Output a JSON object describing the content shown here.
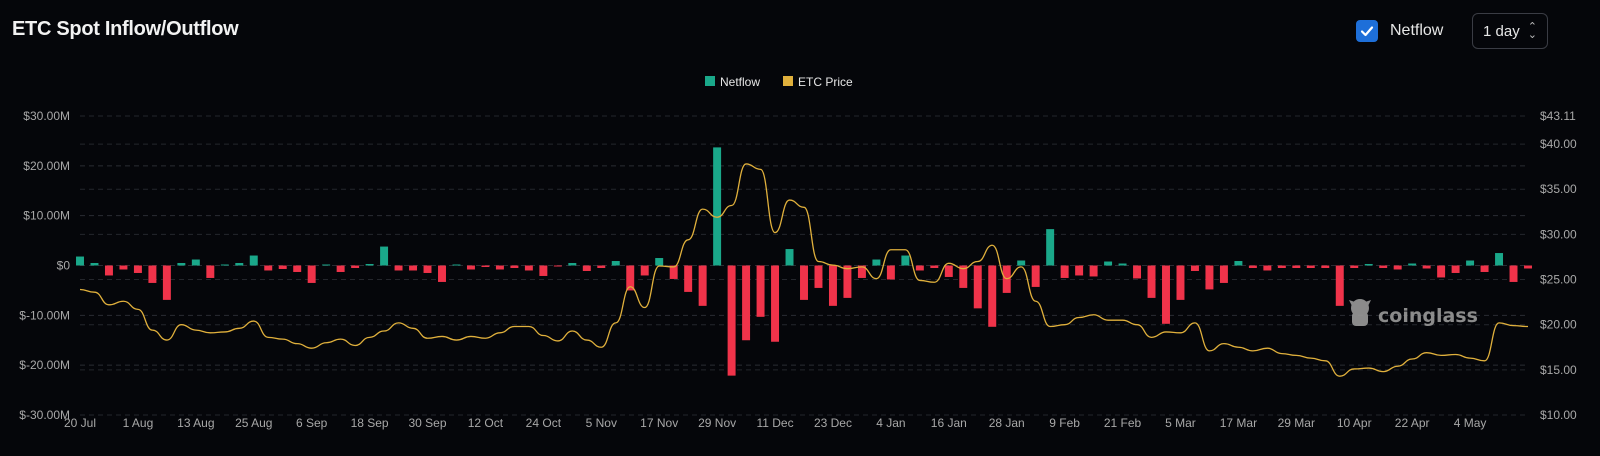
{
  "header": {
    "title": "ETC Spot Inflow/Outflow",
    "netflow_toggle": {
      "label": "Netflow",
      "checked": true,
      "icon": "checkmark-icon"
    },
    "interval_select": {
      "value": "1 day",
      "icon": "chevron-up-down-icon"
    }
  },
  "watermark": "coinglass",
  "colors": {
    "background": "#05060a",
    "inflow": "#1aa88a",
    "outflow": "#f0334a",
    "price": "#e0b03c",
    "checkbox": "#1e6fd9"
  },
  "chart_data": {
    "type": "bar+line",
    "title": "ETC Spot Inflow/Outflow",
    "legend": {
      "position": "top-center",
      "items": [
        "Netflow",
        "ETC Price"
      ]
    },
    "grid": true,
    "y_left": {
      "ticks": [
        "$30.00M",
        "$20.00M",
        "$10.00M",
        "$0",
        "$-10.00M",
        "$-20.00M",
        "$-30.00M"
      ],
      "range": [
        -30,
        30
      ],
      "unit": "M USD"
    },
    "y_right": {
      "ticks": [
        "$43.11",
        "$40.00",
        "$35.00",
        "$30.00",
        "$25.00",
        "$20.00",
        "$15.00",
        "$10.00"
      ],
      "range": [
        10,
        43.11
      ],
      "unit": "USD"
    },
    "x_ticks": [
      "20 Jul",
      "1 Aug",
      "13 Aug",
      "25 Aug",
      "6 Sep",
      "18 Sep",
      "30 Sep",
      "12 Oct",
      "24 Oct",
      "5 Nov",
      "17 Nov",
      "29 Nov",
      "11 Dec",
      "23 Dec",
      "4 Jan",
      "16 Jan",
      "28 Jan",
      "9 Feb",
      "21 Feb",
      "5 Mar",
      "17 Mar",
      "29 Mar",
      "10 Apr",
      "22 Apr",
      "4 May"
    ],
    "x": [
      "20 Jul",
      "23 Jul",
      "26 Jul",
      "29 Jul",
      "1 Aug",
      "4 Aug",
      "7 Aug",
      "10 Aug",
      "13 Aug",
      "16 Aug",
      "19 Aug",
      "22 Aug",
      "25 Aug",
      "28 Aug",
      "31 Aug",
      "3 Sep",
      "6 Sep",
      "9 Sep",
      "12 Sep",
      "15 Sep",
      "18 Sep",
      "21 Sep",
      "24 Sep",
      "27 Sep",
      "30 Sep",
      "3 Oct",
      "6 Oct",
      "9 Oct",
      "12 Oct",
      "15 Oct",
      "18 Oct",
      "21 Oct",
      "24 Oct",
      "27 Oct",
      "30 Oct",
      "2 Nov",
      "5 Nov",
      "8 Nov",
      "11 Nov",
      "14 Nov",
      "17 Nov",
      "20 Nov",
      "23 Nov",
      "26 Nov",
      "29 Nov",
      "2 Dec",
      "5 Dec",
      "8 Dec",
      "11 Dec",
      "14 Dec",
      "17 Dec",
      "20 Dec",
      "23 Dec",
      "26 Dec",
      "29 Dec",
      "1 Jan",
      "4 Jan",
      "7 Jan",
      "10 Jan",
      "13 Jan",
      "16 Jan",
      "19 Jan",
      "22 Jan",
      "25 Jan",
      "28 Jan",
      "31 Jan",
      "3 Feb",
      "6 Feb",
      "9 Feb",
      "12 Feb",
      "15 Feb",
      "18 Feb",
      "21 Feb",
      "24 Feb",
      "27 Feb",
      "2 Mar",
      "5 Mar",
      "8 Mar",
      "11 Mar",
      "14 Mar",
      "17 Mar",
      "20 Mar",
      "23 Mar",
      "26 Mar",
      "29 Mar",
      "1 Apr",
      "4 Apr",
      "7 Apr",
      "10 Apr",
      "13 Apr",
      "16 Apr",
      "19 Apr",
      "22 Apr",
      "25 Apr",
      "28 Apr",
      "1 May",
      "4 May",
      "7 May",
      "10 May",
      "13 May",
      "16 May"
    ],
    "series": [
      {
        "name": "Netflow",
        "type": "bar",
        "axis": "left",
        "unit": "M USD",
        "values": [
          1.8,
          0.5,
          -2.0,
          -0.8,
          -1.5,
          -3.5,
          -6.9,
          0.5,
          1.2,
          -2.5,
          0.2,
          0.5,
          2.0,
          -1.0,
          -0.7,
          -1.3,
          -3.5,
          0.2,
          -1.3,
          -0.5,
          0.3,
          3.8,
          -1.0,
          -1.0,
          -1.5,
          -3.3,
          0.2,
          -0.8,
          -0.3,
          -0.8,
          -0.5,
          -1.0,
          -2.1,
          -0.2,
          0.5,
          -1.1,
          -0.5,
          0.9,
          -5.0,
          -2.0,
          1.5,
          -2.7,
          -5.3,
          -8.1,
          23.7,
          -22.1,
          -15.0,
          -10.3,
          -15.3,
          3.3,
          -6.9,
          -4.5,
          -8.1,
          -6.5,
          -2.5,
          1.2,
          -2.8,
          2.0,
          -1.0,
          -0.5,
          -2.3,
          -4.5,
          -8.6,
          -12.3,
          -5.5,
          1.0,
          -4.3,
          7.3,
          -2.5,
          -2.0,
          -2.2,
          0.8,
          0.4,
          -2.6,
          -6.5,
          -11.7,
          -6.9,
          -1.1,
          -4.8,
          -3.5,
          0.9,
          -0.5,
          -1.0,
          -0.5,
          -0.5,
          -0.5,
          -0.5,
          -8.1,
          -0.5,
          0.3,
          -0.5,
          -0.8,
          0.4,
          -0.6,
          -2.4,
          -1.5,
          1.0,
          -1.3,
          2.5,
          -3.3,
          -0.6
        ]
      },
      {
        "name": "ETC Price",
        "type": "line",
        "axis": "right",
        "unit": "USD",
        "values": [
          23.9,
          23.6,
          22.2,
          22.6,
          21.7,
          19.4,
          18.3,
          20.0,
          19.4,
          19.1,
          19.2,
          19.6,
          20.4,
          18.6,
          18.4,
          17.9,
          17.4,
          18.0,
          18.4,
          17.7,
          18.6,
          19.3,
          20.2,
          19.6,
          18.5,
          18.7,
          18.3,
          18.7,
          18.5,
          19.1,
          19.8,
          19.8,
          18.8,
          18.2,
          19.3,
          18.3,
          17.5,
          20.2,
          24.2,
          21.9,
          26.5,
          26.4,
          29.4,
          32.8,
          31.9,
          33.2,
          37.8,
          37.2,
          30.2,
          33.8,
          33.0,
          27.0,
          26.6,
          26.2,
          26.4,
          25.1,
          28.3,
          28.3,
          24.9,
          24.7,
          26.8,
          26.2,
          27.0,
          28.8,
          25.1,
          26.4,
          22.6,
          19.8,
          20.0,
          20.8,
          21.1,
          20.5,
          20.5,
          20.0,
          18.6,
          19.2,
          19.1,
          20.2,
          17.1,
          17.9,
          17.5,
          17.1,
          17.4,
          16.8,
          16.6,
          16.3,
          16.0,
          14.3,
          15.1,
          15.2,
          14.8,
          15.4,
          16.2,
          16.9,
          16.6,
          16.7,
          16.3,
          16.0,
          20.2,
          19.9,
          19.8
        ]
      }
    ]
  }
}
